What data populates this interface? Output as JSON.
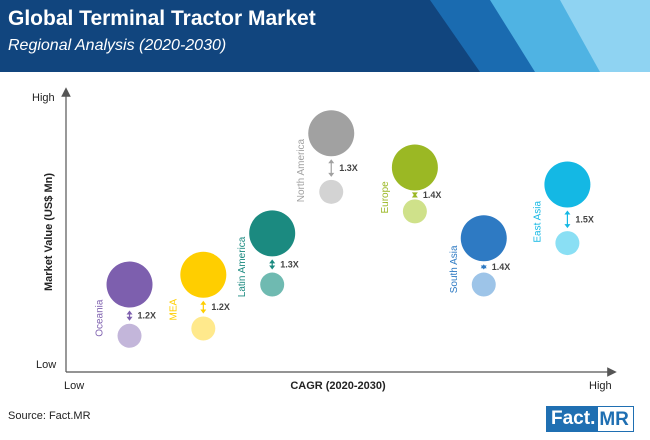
{
  "header": {
    "title": "Global Terminal Tractor Market",
    "subtitle": "Regional Analysis (2020-2030)",
    "colors": {
      "dark": "#11457e",
      "mid": "#1a6bb0",
      "light": "#4fb3e3",
      "lighter": "#8fd3f2"
    }
  },
  "chart_data": {
    "type": "scatter",
    "title": "Global Terminal Tractor Market",
    "subtitle": "Regional Analysis (2020-2030)",
    "xlabel": "CAGR (2020-2030)",
    "ylabel": "Market Value (US$ Mn)",
    "x_tick_low": "Low",
    "x_tick_high": "High",
    "y_tick_low": "Low",
    "y_tick_high": "High",
    "xlim": [
      0,
      100
    ],
    "ylim": [
      0,
      100
    ],
    "grid": false,
    "legend": "none",
    "series": [
      {
        "region": "Oceania",
        "growth": "1.2X",
        "cagr": 6,
        "value_2030": 26,
        "value_2020": 5,
        "color": "#7d5fae",
        "color_light": "#c3b6da"
      },
      {
        "region": "MEA",
        "growth": "1.2X",
        "cagr": 21,
        "value_2030": 30,
        "value_2020": 8,
        "color": "#ffce00",
        "color_light": "#ffe98c"
      },
      {
        "region": "Latin America",
        "growth": "1.3X",
        "cagr": 35,
        "value_2030": 47,
        "value_2020": 26,
        "color": "#1b8a80",
        "color_light": "#6fbab1"
      },
      {
        "region": "North America",
        "growth": "1.3X",
        "cagr": 47,
        "value_2030": 88,
        "value_2020": 64,
        "color": "#a1a1a1",
        "color_light": "#d3d3d3"
      },
      {
        "region": "Europe",
        "growth": "1.4X",
        "cagr": 64,
        "value_2030": 74,
        "value_2020": 56,
        "color": "#9bb824",
        "color_light": "#cfe18a"
      },
      {
        "region": "South Asia",
        "growth": "1.4X",
        "cagr": 78,
        "value_2030": 45,
        "value_2020": 26,
        "color": "#2e7ac3",
        "color_light": "#9dc4e8"
      },
      {
        "region": "East Asia",
        "growth": "1.5X",
        "cagr": 95,
        "value_2030": 67,
        "value_2020": 43,
        "color": "#14b8e4",
        "color_light": "#8adff4"
      }
    ]
  },
  "footer": {
    "source": "Source: Fact.MR",
    "logo_left": "Fact.",
    "logo_right": "MR"
  }
}
